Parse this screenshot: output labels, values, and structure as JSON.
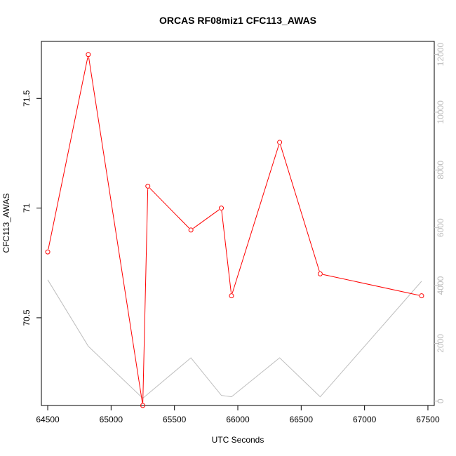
{
  "chart_data": {
    "type": "line",
    "title": "ORCAS RF08miz1 CFC113_AWAS",
    "xlabel": "UTC Seconds",
    "ylabel": "CFC113_AWAS",
    "xlim": [
      64450,
      67550
    ],
    "ylim": [
      70.1,
      71.76
    ],
    "y2lim": [
      -150,
      12450
    ],
    "x_ticks": [
      64500,
      65000,
      65500,
      66000,
      66500,
      67000,
      67500
    ],
    "y_ticks": [
      70.5,
      71.0,
      71.5
    ],
    "y2_ticks": [
      0,
      2000,
      4000,
      6000,
      8000,
      10000,
      12000
    ],
    "grid": false,
    "series": [
      {
        "color": "#ff0000",
        "axis": "left",
        "markers": true,
        "x": [
          64500,
          64820,
          65250,
          65290,
          65630,
          65870,
          65950,
          66330,
          66650,
          67450
        ],
        "y": [
          70.8,
          71.7,
          70.1,
          71.1,
          70.9,
          71.0,
          70.6,
          71.3,
          70.7,
          70.6
        ]
      },
      {
        "color": "#bebebe",
        "axis": "right",
        "markers": false,
        "x": [
          64500,
          64820,
          65250,
          65630,
          65870,
          65950,
          66330,
          66650,
          67450
        ],
        "y": [
          4200,
          1900,
          100,
          1500,
          200,
          150,
          1500,
          150,
          4150
        ]
      }
    ]
  }
}
